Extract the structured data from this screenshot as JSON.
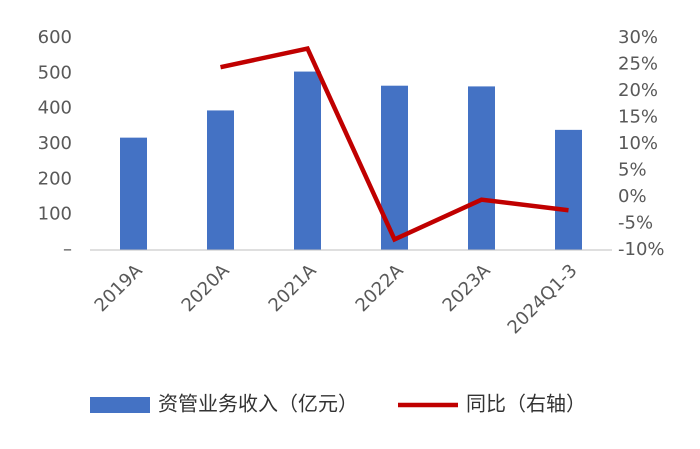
{
  "chart_data": {
    "type": "bar-line",
    "categories": [
      "2019A",
      "2020A",
      "2021A",
      "2022A",
      "2023A",
      "2024Q1-3"
    ],
    "series": [
      {
        "name": "资管业务收入（亿元）",
        "type": "bar",
        "color": "#4472c4",
        "values": [
          318,
          395,
          505,
          465,
          463,
          340
        ]
      },
      {
        "name": "同比（右轴）",
        "type": "line",
        "axis": "y2",
        "color": "#c00000",
        "values": [
          null,
          24.5,
          28,
          -8,
          -0.5,
          -2.5
        ]
      }
    ],
    "ylim": [
      0,
      600
    ],
    "yticks": [
      {
        "value": 0,
        "label": "–"
      },
      100,
      200,
      300,
      400,
      500,
      600
    ],
    "y2lim": [
      -10,
      30
    ],
    "y2ticks": [
      {
        "value": -10,
        "label": "-10%"
      },
      {
        "value": -5,
        "label": "-5%"
      },
      {
        "value": 0,
        "label": "0%"
      },
      {
        "value": 5,
        "label": "5%"
      },
      {
        "value": 10,
        "label": "10%"
      },
      {
        "value": 15,
        "label": "15%"
      },
      {
        "value": 20,
        "label": "20%"
      },
      {
        "value": 25,
        "label": "25%"
      },
      {
        "value": 30,
        "label": "30%"
      }
    ],
    "legend": "bottom"
  }
}
